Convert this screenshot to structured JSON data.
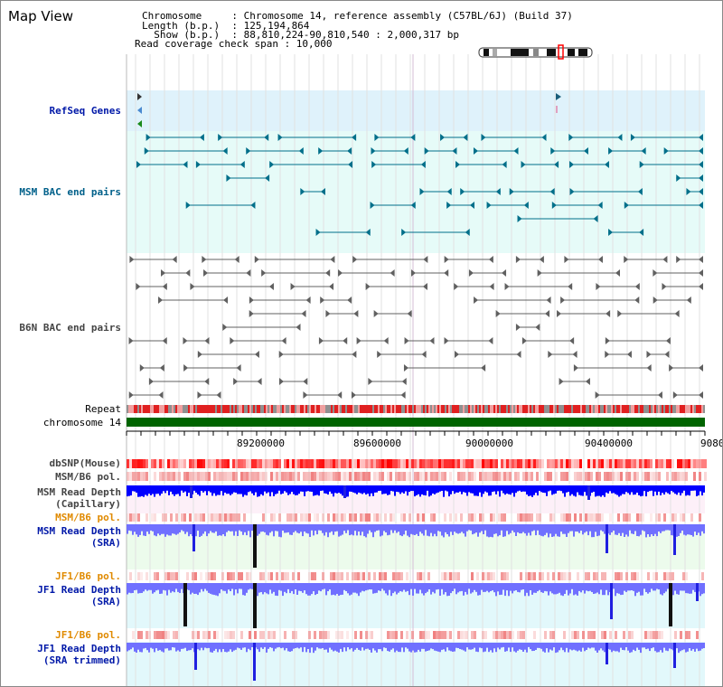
{
  "header": {
    "title": "Map View",
    "info_lines": [
      "Chromosome     : Chromosome 14, reference assembly (C57BL/6J) (Build 37)",
      "Length (b.p.)  : 125,194,864",
      "  Show (b.p.)  : 88,810,224-90,810,540 : 2,000,317 bp",
      "Read coverage check span : 10,000"
    ]
  },
  "tracks": {
    "refseq": "RefSeq Genes",
    "msm_bac": "MSM BAC end pairs",
    "b6n_bac": "B6N BAC end pairs",
    "repeat": "Repeat",
    "chromosome": "chromosome 14",
    "dbsnp": "dbSNP(Mouse)",
    "msm_pol": "MSM/B6 pol.",
    "msm_depth_cap": "MSM Read Depth\n(Capillary)",
    "msm_pol2": "MSM/B6 pol.",
    "msm_depth_sra": "MSM Read Depth\n(SRA)",
    "jf1_pol": "JF1/B6 pol.",
    "jf1_depth_sra": "JF1 Read Depth\n(SRA)",
    "jf1_pol2": "JF1/B6 pol.",
    "jf1_depth_trim": "JF1 Read Depth\n(SRA trimmed)"
  },
  "ruler": {
    "ticks": [
      "89200000",
      "89600000",
      "90000000",
      "90400000",
      "9080"
    ]
  },
  "colors": {
    "refseq_bg": "#dff2fb",
    "msm_bg": "#e6fbf8",
    "depth_blue": "#0000ff",
    "depth_light": "#7070ff",
    "pol_red": "#ff0000",
    "chrom_green": "#006400",
    "msm_line": "#006f8a",
    "b6n_line": "#606060"
  }
}
